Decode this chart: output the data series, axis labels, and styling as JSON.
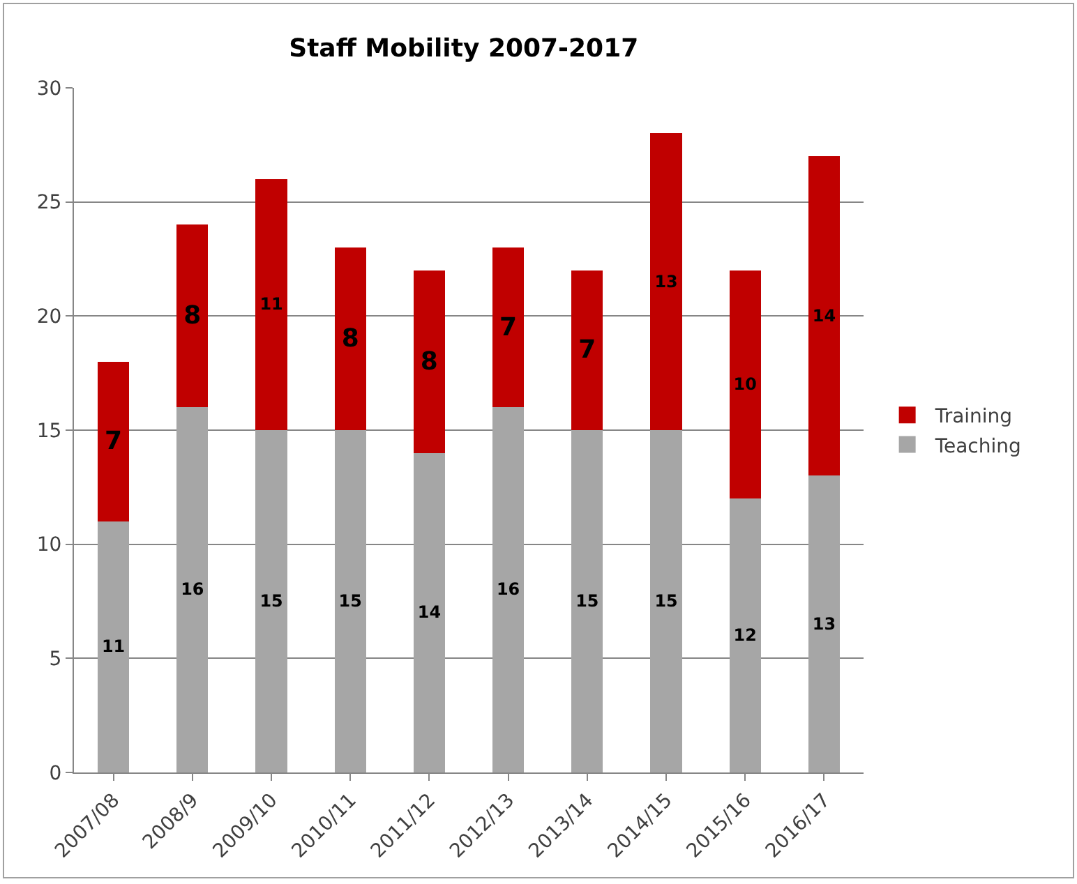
{
  "chart_data": {
    "type": "bar",
    "title": "Staff Mobility 2007-2017",
    "categories": [
      "2007/08",
      "2008/9",
      "2009/10",
      "2010/11",
      "2011/12",
      "2012/13",
      "2013/14",
      "2014/15",
      "2015/16",
      "2016/17"
    ],
    "series": [
      {
        "name": "Teaching",
        "color": "#a6a6a6",
        "values": [
          11,
          16,
          15,
          15,
          14,
          16,
          15,
          15,
          12,
          13
        ]
      },
      {
        "name": "Training",
        "color": "#c00000",
        "values": [
          7,
          8,
          11,
          8,
          8,
          7,
          7,
          13,
          10,
          14
        ]
      }
    ],
    "stacked": true,
    "ylim": [
      0,
      30
    ],
    "yticks": [
      0,
      5,
      10,
      15,
      20,
      25,
      30
    ],
    "grid": "y",
    "legend": "right",
    "data_labels": true
  }
}
